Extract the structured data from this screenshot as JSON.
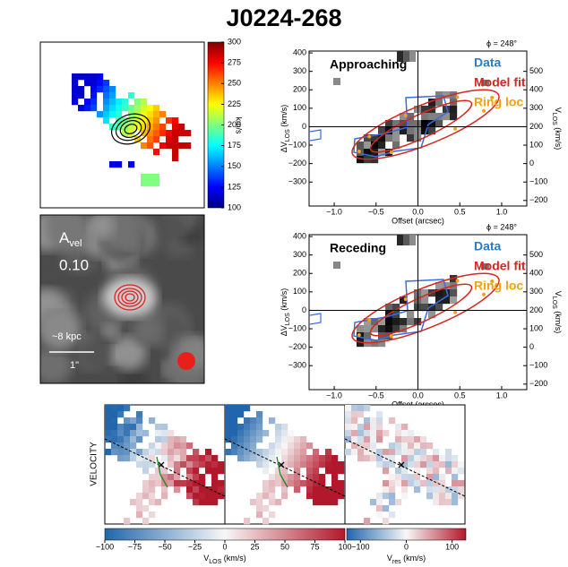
{
  "title": "J0224-268",
  "velocity_map": {
    "colorbar_ticks": [
      100,
      125,
      150,
      175,
      200,
      225,
      250,
      275,
      300
    ],
    "colorbar_lim": [
      100,
      300
    ],
    "colorbar_label": "km/s"
  },
  "amplitude_map": {
    "symbol": "A",
    "symbol_sub": "vel",
    "value": "0.10",
    "scale_label": "~8 kpc",
    "bar_label": "1\""
  },
  "pv_panels": [
    {
      "label": "Approaching",
      "phi_label": "ϕ = 248°",
      "legend": [
        "Data",
        "Model fit",
        "Ring loc"
      ]
    },
    {
      "label": "Receding",
      "phi_label": "ϕ = 248°",
      "legend": [
        "Data",
        "Model fit",
        "Ring loc"
      ]
    }
  ],
  "pv_axes": {
    "xlim": [
      -1.3,
      1.3
    ],
    "xticks": [
      {
        "value": -1.0,
        "label": "−1.0"
      },
      {
        "value": -0.5,
        "label": "−0.5"
      },
      {
        "value": 0.0,
        "label": "0.0"
      },
      {
        "value": 0.5,
        "label": "0.5"
      },
      {
        "value": 1.0,
        "label": "1.0"
      }
    ],
    "ylim": [
      -430,
      410
    ],
    "yticks": [
      {
        "value": -300,
        "label": "−300"
      },
      {
        "value": -200,
        "label": "−200"
      },
      {
        "value": -100,
        "label": "−100"
      },
      0,
      100,
      200,
      300,
      400
    ],
    "y2lim": [
      -230,
      610
    ],
    "y2ticks": [
      {
        "value": -200,
        "label": "−200"
      },
      {
        "value": -100,
        "label": "−100"
      },
      0,
      100,
      200,
      300,
      400,
      500
    ],
    "xlabel": "Offset (arcsec)",
    "ylabel": {
      "main": "ΔV",
      "sub": "LOS",
      "unit": " (km/s)"
    },
    "y2label": {
      "main": "V",
      "sub": "LOS",
      "unit": " (km/s)"
    }
  },
  "bottom_maps": {
    "ylabel": "VELOCITY",
    "cbar_los": {
      "lim": [
        -100,
        100
      ],
      "ticks": [
        {
          "value": -100,
          "label": "−100"
        },
        {
          "value": -75,
          "label": "−75"
        },
        {
          "value": -50,
          "label": "−50"
        },
        {
          "value": -25,
          "label": "−25"
        },
        0,
        25,
        50,
        75,
        100
      ],
      "label": {
        "main": "V",
        "sub": "LOS",
        "unit": " (km/s)"
      }
    },
    "cbar_res": {
      "lim": [
        -130,
        130
      ],
      "ticks": [
        {
          "value": -100,
          "label": "−100"
        },
        0,
        100
      ],
      "label": {
        "main": "V",
        "sub": "res",
        "unit": " (km/s)"
      }
    }
  }
}
